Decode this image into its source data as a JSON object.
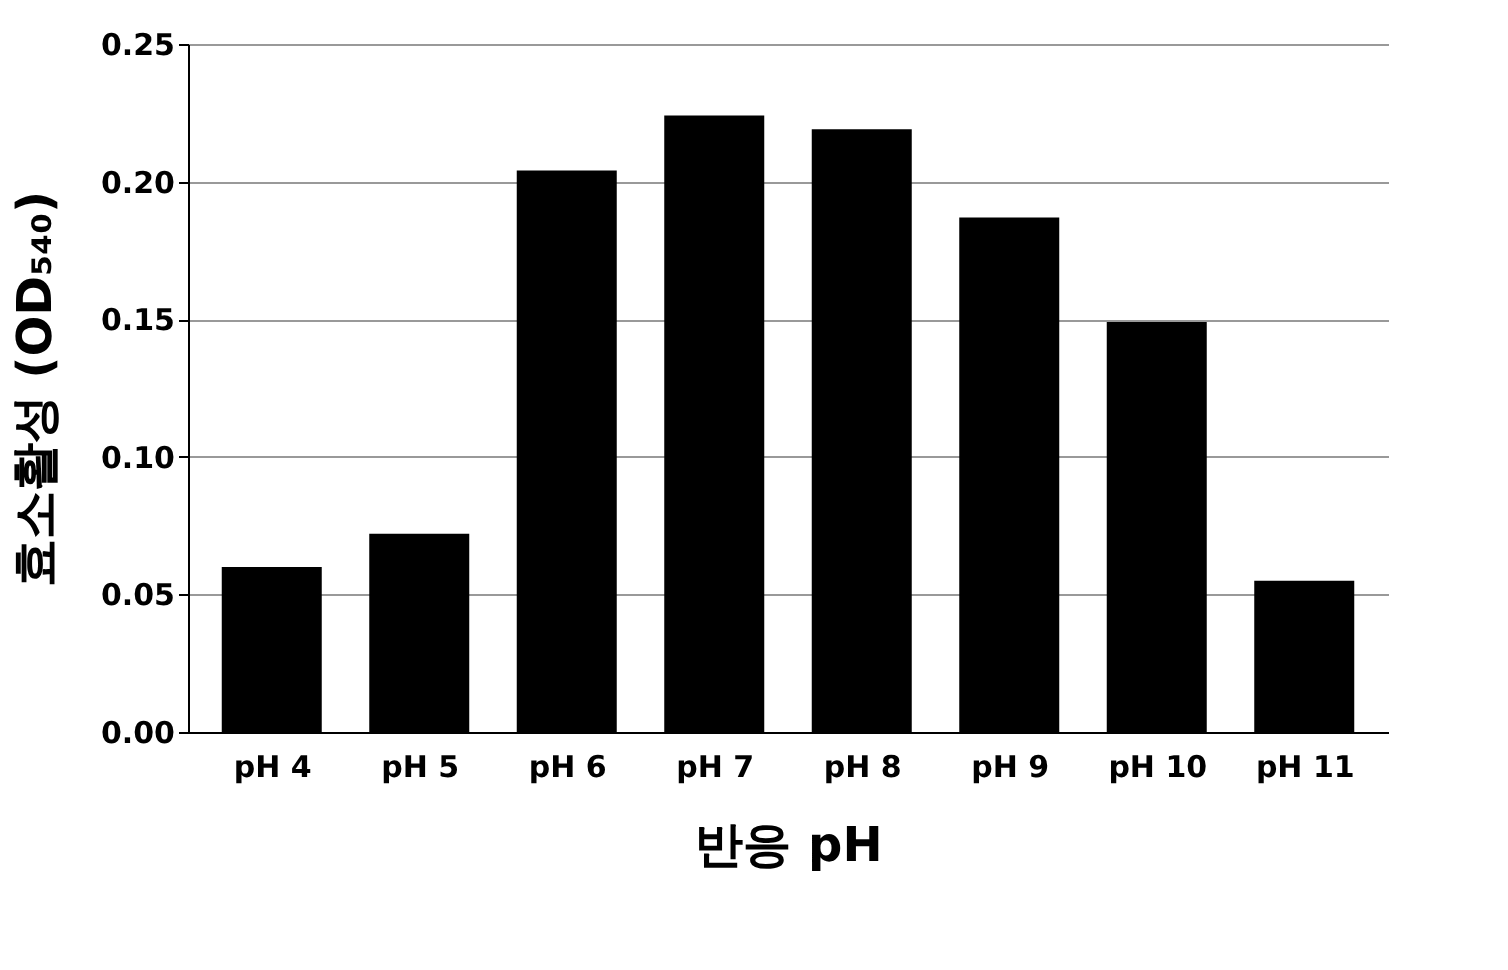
{
  "chart_data": {
    "type": "bar",
    "xlabel": "반응 pH",
    "ylabel": "효소활성 (OD₅₄₀)",
    "categories": [
      "pH 4",
      "pH 5",
      "pH 6",
      "pH 7",
      "pH 8",
      "pH 9",
      "pH 10",
      "pH 11"
    ],
    "values": [
      0.06,
      0.072,
      0.204,
      0.224,
      0.219,
      0.187,
      0.149,
      0.055
    ],
    "color": "#000000",
    "ylim": [
      0,
      0.25
    ],
    "yticks": [
      {
        "value": 0,
        "label": "0.00"
      },
      {
        "value": 0.05,
        "label": "0.05"
      },
      {
        "value": 0.1,
        "label": "0.10"
      },
      {
        "value": 0.15,
        "label": "0.15"
      },
      {
        "value": 0.2,
        "label": "0.20"
      },
      {
        "value": 0.25,
        "label": "0.25"
      }
    ],
    "grid": "y"
  }
}
